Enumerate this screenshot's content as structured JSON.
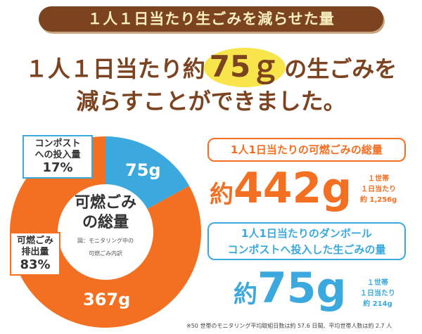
{
  "banner": "１人１日当たり生ごみを減らせた量",
  "headline": {
    "pre": "１人１日当たり約",
    "highlight": "75ｇ",
    "post": "の生ごみを",
    "line2": "減らすことができました。"
  },
  "colors": {
    "brown": "#7b4320",
    "orange": "#f36f21",
    "blue": "#3ba9de",
    "highlight": "#f8e44b"
  },
  "chart_data": {
    "type": "pie",
    "donut": true,
    "title": "可燃ごみの総量",
    "caption": "図：モニタリング中の可燃ごみ内訳",
    "slices": [
      {
        "name": "コンポストへの投入量",
        "value": 75,
        "label": "75g",
        "percent": "17%",
        "color": "#3ba9de"
      },
      {
        "name": "可燃ごみ排出量",
        "value": 367,
        "label": "367g",
        "percent": "83%",
        "color": "#f36f21"
      }
    ]
  },
  "labels": {
    "compost_l1": "コンポスト",
    "compost_l2": "への投入量",
    "burn_l1": "可燃ごみ",
    "burn_l2": "排出量"
  },
  "center": {
    "l1": "可燃ごみ",
    "l2": "の総量",
    "cap1": "図：モニタリング中の",
    "cap2": "可燃ごみ内訳"
  },
  "total": {
    "box": "1人1日当たりの可燃ごみの総量",
    "pre": "約",
    "value": "442g",
    "side1": "１世帯",
    "side2": "１日当たり",
    "side3": "約 1,256g"
  },
  "compost": {
    "box1": "1人1日当たりのダンボール",
    "box2": "コンポストへ投入した生ごみの量",
    "pre": "約",
    "value": "75g",
    "side1": "１世帯",
    "side2": "１日当たり",
    "side3": "約 214g"
  },
  "note": "※50 世帯のモニタリング平均取組日数は約 57.6 日間、平均世帯人数は約 2.7 人"
}
